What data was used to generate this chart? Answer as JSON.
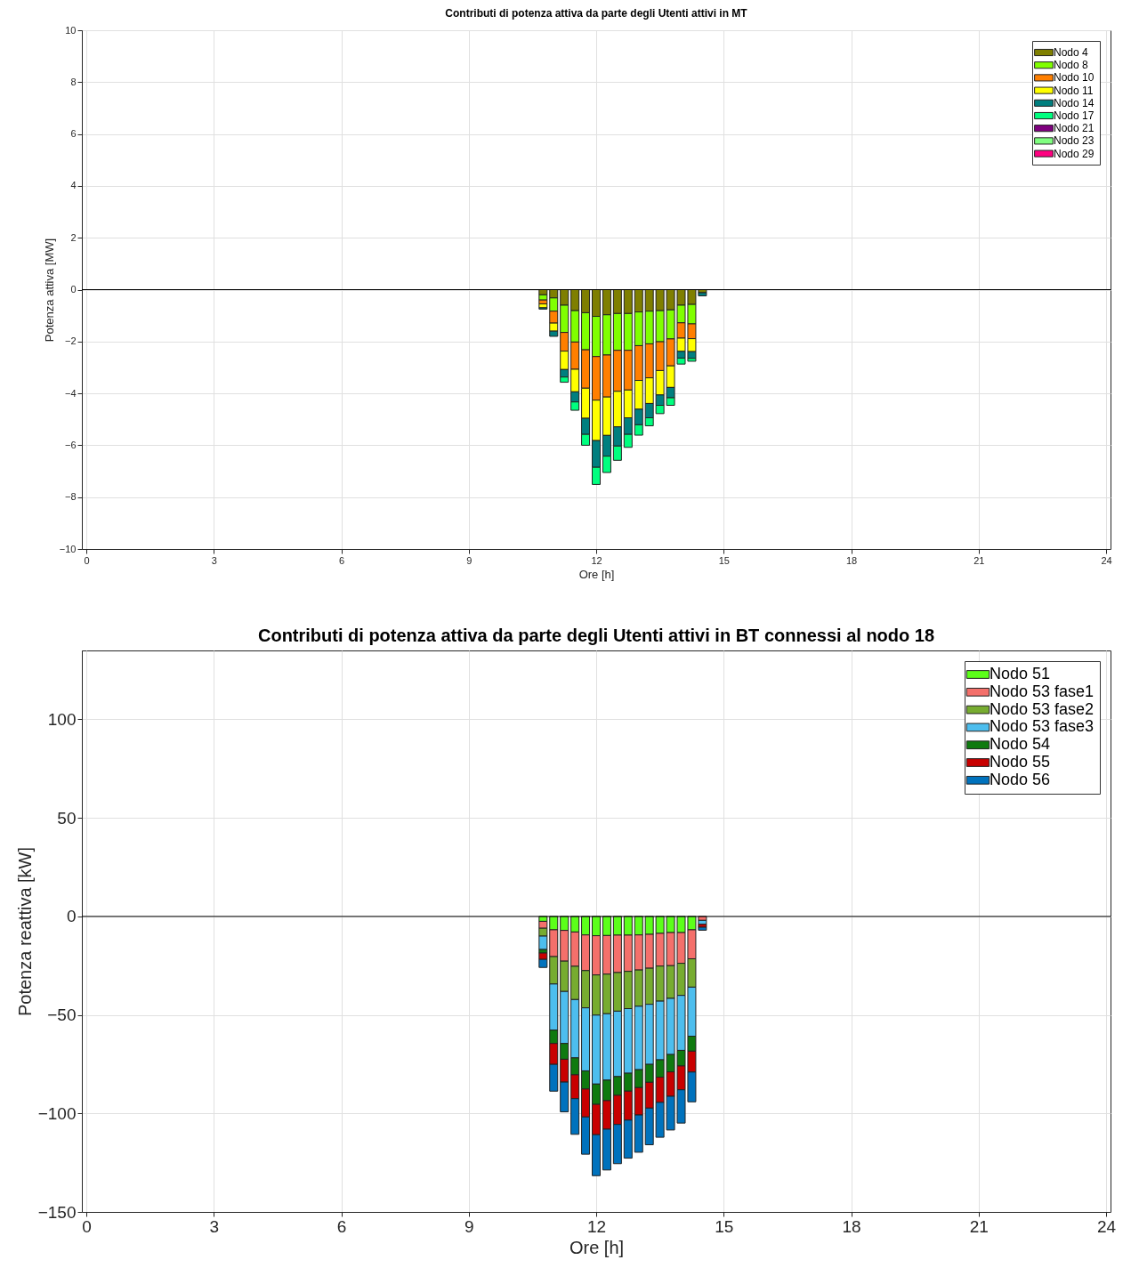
{
  "chart_data": [
    {
      "type": "bar",
      "title": "Contributi di potenza attiva da parte degli Utenti attivi in MT",
      "xlabel": "Ore [h]",
      "ylabel": "Potenza attiva [MW]",
      "stacked": true,
      "grid": true,
      "legend": "top right",
      "x": [
        10.75,
        11.0,
        11.25,
        11.5,
        11.75,
        12.0,
        12.25,
        12.5,
        12.75,
        13.0,
        13.25,
        13.5,
        13.75,
        14.0,
        14.25,
        14.5
      ],
      "xlim": [
        0,
        24
      ],
      "xticks": [
        0,
        3,
        6,
        9,
        12,
        15,
        18,
        21,
        24
      ],
      "ylim": [
        -10,
        10
      ],
      "yticks": [
        -10,
        -8,
        -6,
        -4,
        -2,
        0,
        2,
        4,
        6,
        8,
        10
      ],
      "ref_lines": [
        {
          "axis": "y",
          "value": 0,
          "color": "#000000"
        }
      ],
      "series": [
        {
          "name": "Nodo 4",
          "color": "#7f7f00",
          "values": [
            -0.2,
            -0.32,
            -0.6,
            -0.81,
            -0.89,
            -1.03,
            -0.97,
            -0.92,
            -0.92,
            -0.86,
            -0.83,
            -0.81,
            -0.78,
            -0.6,
            -0.57,
            -0.12
          ]
        },
        {
          "name": "Nodo 8",
          "color": "#80ff00",
          "values": [
            -0.2,
            -0.51,
            -1.05,
            -1.21,
            -1.43,
            -1.55,
            -1.55,
            -1.42,
            -1.42,
            -1.3,
            -1.26,
            -1.2,
            -1.12,
            -0.68,
            -0.75,
            null
          ]
        },
        {
          "name": "Nodo 10",
          "color": "#ff7f00",
          "values": [
            -0.15,
            -0.46,
            -0.72,
            -1.05,
            -1.48,
            -1.68,
            -1.62,
            -1.58,
            -1.53,
            -1.34,
            -1.31,
            -1.11,
            -1.04,
            -0.59,
            -0.57,
            null
          ]
        },
        {
          "name": "Nodo 11",
          "color": "#ffff00",
          "values": [
            -0.15,
            -0.31,
            -0.71,
            -0.87,
            -1.16,
            -1.56,
            -1.48,
            -1.37,
            -1.07,
            -1.11,
            -0.99,
            -0.94,
            -0.83,
            -0.51,
            -0.5,
            null
          ]
        },
        {
          "name": "Nodo 14",
          "color": "#007f7f",
          "values": [
            -0.05,
            -0.2,
            -0.29,
            -0.39,
            -0.62,
            -1.03,
            -0.8,
            -0.74,
            -0.64,
            -0.6,
            -0.55,
            -0.4,
            -0.4,
            -0.26,
            -0.26,
            -0.12
          ]
        },
        {
          "name": "Nodo 17",
          "color": "#00ff7f",
          "values": [
            null,
            null,
            -0.2,
            -0.32,
            -0.42,
            -0.66,
            -0.63,
            -0.55,
            -0.5,
            -0.4,
            -0.31,
            -0.32,
            -0.29,
            -0.23,
            -0.11,
            null
          ]
        },
        {
          "name": "Nodo 21",
          "color": "#7f007f",
          "values": [
            null,
            null,
            null,
            null,
            null,
            null,
            null,
            null,
            null,
            null,
            null,
            null,
            null,
            null,
            null,
            null
          ]
        },
        {
          "name": "Nodo 23",
          "color": "#80ff80",
          "values": [
            null,
            null,
            null,
            null,
            null,
            null,
            null,
            null,
            null,
            null,
            null,
            null,
            null,
            null,
            null,
            null
          ]
        },
        {
          "name": "Nodo 29",
          "color": "#ff0080",
          "values": [
            null,
            null,
            null,
            null,
            null,
            null,
            null,
            null,
            null,
            null,
            null,
            null,
            null,
            null,
            null,
            null
          ]
        }
      ]
    },
    {
      "type": "bar",
      "title": "Contributi di potenza attiva da parte degli Utenti attivi in BT connessi al nodo 18",
      "xlabel": "Ore [h]",
      "ylabel": "Potenza reattiva [kW]",
      "stacked": true,
      "grid": true,
      "legend": "top right",
      "x": [
        10.75,
        11.0,
        11.25,
        11.5,
        11.75,
        12.0,
        12.25,
        12.5,
        12.75,
        13.0,
        13.25,
        13.5,
        13.75,
        14.0,
        14.25,
        14.5
      ],
      "xlim": [
        0,
        24
      ],
      "xticks": [
        0,
        3,
        6,
        9,
        12,
        15,
        18,
        21,
        24
      ],
      "ylim": [
        -150,
        135
      ],
      "yticks": [
        -150,
        -100,
        -50,
        0,
        50,
        100
      ],
      "ref_lines": [
        {
          "axis": "y",
          "value": 0,
          "color": "#000000"
        }
      ],
      "series": [
        {
          "name": "Nodo 51",
          "color": "#5cff1a",
          "values": [
            -2.5,
            -6.8,
            -7.1,
            -7.9,
            -9.4,
            -9.8,
            -9.7,
            -9.5,
            -9.5,
            -9.4,
            -9.1,
            -8.6,
            -8.2,
            -8.2,
            -6.8,
            null
          ]
        },
        {
          "name": "Nodo 53 fase1",
          "color": "#f4706b",
          "values": [
            -3.5,
            -13.6,
            -15.6,
            -17.4,
            -18.1,
            -19.9,
            -19.6,
            -19,
            -18.4,
            -17.8,
            -17.2,
            -16.6,
            -16.8,
            -15.6,
            -14.7,
            -2
          ]
        },
        {
          "name": "Nodo 53 fase2",
          "color": "#77ac30",
          "values": [
            -4,
            -13.9,
            -15.4,
            -16.9,
            -18.9,
            -20.4,
            -20.1,
            -19.6,
            -18.9,
            -18.4,
            -18.3,
            -17.8,
            -16.6,
            -16.3,
            -14.4,
            null
          ]
        },
        {
          "name": "Nodo 53 fase3",
          "color": "#4dbeee",
          "values": [
            -6.8,
            -23.4,
            -26.4,
            -29.6,
            -32,
            -35,
            -33.7,
            -33.2,
            -32.8,
            -32.2,
            -30.5,
            -29.8,
            -28.5,
            -27.9,
            -24.9,
            -2
          ]
        },
        {
          "name": "Nodo 54",
          "color": "#0f7a0f",
          "values": [
            -1.8,
            -6.8,
            -8,
            -8.6,
            -9.2,
            -10.3,
            -10.4,
            -9.5,
            -9.1,
            -9.1,
            -9.1,
            -8.8,
            -8.8,
            -7.9,
            -7.6,
            null
          ]
        },
        {
          "name": "Nodo 55",
          "color": "#c80000",
          "values": [
            -3.2,
            -10.6,
            -11.6,
            -12.1,
            -14.2,
            -15.4,
            -14.5,
            -14.8,
            -14.7,
            -13.9,
            -13.1,
            -12.8,
            -12.4,
            -12.1,
            -10.6,
            -1.5
          ]
        },
        {
          "name": "Nodo 56",
          "color": "#0072bd",
          "values": [
            -4.1,
            -13.6,
            -15.1,
            -18.1,
            -18.9,
            -20.8,
            -20.7,
            -19.9,
            -19.3,
            -18.9,
            -18.6,
            -17.7,
            -17.1,
            -16.9,
            -15.1,
            -1.5
          ]
        }
      ]
    }
  ]
}
